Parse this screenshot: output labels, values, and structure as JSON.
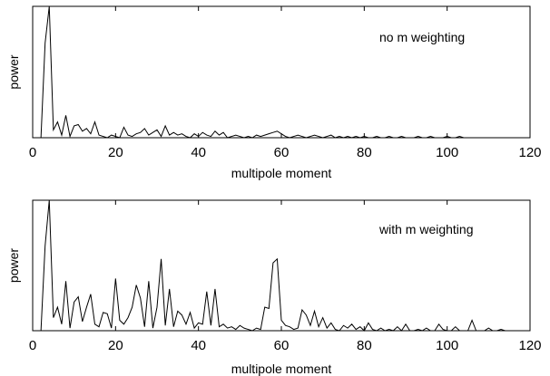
{
  "chart_data": [
    {
      "type": "line",
      "annotation": "no m weighting",
      "xlabel": "multipole moment",
      "ylabel": "power",
      "xlim": [
        0,
        120
      ],
      "ylim": [
        0,
        1
      ],
      "xticks": [
        0,
        20,
        40,
        60,
        80,
        100,
        120
      ],
      "grid": false,
      "series": [
        {
          "x": [
            2,
            3,
            4,
            5,
            6,
            7,
            8,
            9,
            10,
            11,
            12,
            13,
            14,
            15,
            16,
            17,
            18,
            19,
            20,
            21,
            22,
            23,
            24,
            25,
            26,
            27,
            28,
            29,
            30,
            31,
            32,
            33,
            34,
            35,
            36,
            37,
            38,
            39,
            40,
            41,
            42,
            43,
            44,
            45,
            46,
            47,
            48,
            49,
            50,
            51,
            52,
            53,
            54,
            55,
            56,
            57,
            58,
            59,
            60,
            61,
            62,
            63,
            64,
            65,
            66,
            67,
            68,
            69,
            70,
            71,
            72,
            73,
            74,
            75,
            76,
            77,
            78,
            79,
            80,
            81,
            82,
            83,
            84,
            85,
            86,
            87,
            88,
            89,
            90,
            91,
            92,
            93,
            94,
            95,
            96,
            97,
            98,
            99,
            100,
            101,
            102,
            103,
            104,
            105,
            106,
            107,
            108,
            109,
            110,
            111,
            112,
            113,
            114,
            115,
            116,
            117,
            118,
            119
          ],
          "y": [
            0.0,
            0.72,
            1.0,
            0.06,
            0.12,
            0.02,
            0.17,
            0.01,
            0.09,
            0.1,
            0.05,
            0.07,
            0.03,
            0.12,
            0.02,
            0.01,
            0.0,
            0.02,
            0.01,
            0.0,
            0.08,
            0.02,
            0.01,
            0.03,
            0.04,
            0.07,
            0.02,
            0.04,
            0.06,
            0.01,
            0.09,
            0.02,
            0.04,
            0.02,
            0.03,
            0.01,
            0.0,
            0.03,
            0.01,
            0.04,
            0.02,
            0.01,
            0.05,
            0.02,
            0.04,
            0.0,
            0.01,
            0.02,
            0.01,
            0.0,
            0.01,
            0.0,
            0.02,
            0.01,
            0.02,
            0.03,
            0.04,
            0.05,
            0.03,
            0.01,
            0.0,
            0.01,
            0.02,
            0.01,
            0.0,
            0.01,
            0.02,
            0.01,
            0.0,
            0.01,
            0.02,
            0.0,
            0.01,
            0.0,
            0.01,
            0.0,
            0.01,
            0.0,
            0.01,
            0.0,
            0.0,
            0.01,
            0.0,
            0.0,
            0.01,
            0.0,
            0.0,
            0.01,
            0.0,
            0.0,
            0.0,
            0.01,
            0.0,
            0.0,
            0.01,
            0.0,
            0.0,
            0.0,
            0.01,
            0.0,
            0.0,
            0.01,
            0.0,
            0.0,
            0.0,
            0.0,
            0.0,
            0.0,
            0.0,
            0.0,
            0.0,
            0.0,
            0.0,
            0.0,
            0.0,
            0.0,
            0.0,
            0.0
          ]
        }
      ]
    },
    {
      "type": "line",
      "annotation": "with m weighting",
      "xlabel": "multipole moment",
      "ylabel": "power",
      "xlim": [
        0,
        120
      ],
      "ylim": [
        0,
        1
      ],
      "xticks": [
        0,
        20,
        40,
        60,
        80,
        100,
        120
      ],
      "grid": false,
      "series": [
        {
          "x": [
            2,
            3,
            4,
            5,
            6,
            7,
            8,
            9,
            10,
            11,
            12,
            13,
            14,
            15,
            16,
            17,
            18,
            19,
            20,
            21,
            22,
            23,
            24,
            25,
            26,
            27,
            28,
            29,
            30,
            31,
            32,
            33,
            34,
            35,
            36,
            37,
            38,
            39,
            40,
            41,
            42,
            43,
            44,
            45,
            46,
            47,
            48,
            49,
            50,
            51,
            52,
            53,
            54,
            55,
            56,
            57,
            58,
            59,
            60,
            61,
            62,
            63,
            64,
            65,
            66,
            67,
            68,
            69,
            70,
            71,
            72,
            73,
            74,
            75,
            76,
            77,
            78,
            79,
            80,
            81,
            82,
            83,
            84,
            85,
            86,
            87,
            88,
            89,
            90,
            91,
            92,
            93,
            94,
            95,
            96,
            97,
            98,
            99,
            100,
            101,
            102,
            103,
            104,
            105,
            106,
            107,
            108,
            109,
            110,
            111,
            112,
            113,
            114,
            115,
            116,
            117,
            118,
            119
          ],
          "y": [
            0.0,
            0.65,
            1.0,
            0.1,
            0.18,
            0.05,
            0.38,
            0.02,
            0.22,
            0.26,
            0.07,
            0.18,
            0.28,
            0.05,
            0.03,
            0.14,
            0.13,
            0.02,
            0.4,
            0.08,
            0.05,
            0.1,
            0.18,
            0.35,
            0.25,
            0.03,
            0.38,
            0.02,
            0.18,
            0.55,
            0.04,
            0.32,
            0.03,
            0.15,
            0.12,
            0.05,
            0.14,
            0.02,
            0.06,
            0.05,
            0.3,
            0.04,
            0.32,
            0.03,
            0.05,
            0.02,
            0.03,
            0.01,
            0.04,
            0.02,
            0.01,
            0.0,
            0.02,
            0.01,
            0.18,
            0.17,
            0.52,
            0.55,
            0.08,
            0.04,
            0.03,
            0.01,
            0.02,
            0.16,
            0.12,
            0.04,
            0.15,
            0.03,
            0.1,
            0.02,
            0.06,
            0.01,
            0.0,
            0.04,
            0.02,
            0.05,
            0.01,
            0.03,
            0.0,
            0.06,
            0.01,
            0.0,
            0.02,
            0.0,
            0.01,
            0.0,
            0.03,
            0.0,
            0.05,
            0.0,
            0.0,
            0.01,
            0.0,
            0.02,
            0.0,
            0.0,
            0.05,
            0.01,
            0.0,
            0.0,
            0.03,
            0.0,
            0.0,
            0.0,
            0.08,
            0.0,
            0.0,
            0.0,
            0.02,
            0.0,
            0.0,
            0.01,
            0.0,
            0.0,
            0.0,
            0.0,
            0.0,
            0.0
          ]
        }
      ]
    }
  ]
}
